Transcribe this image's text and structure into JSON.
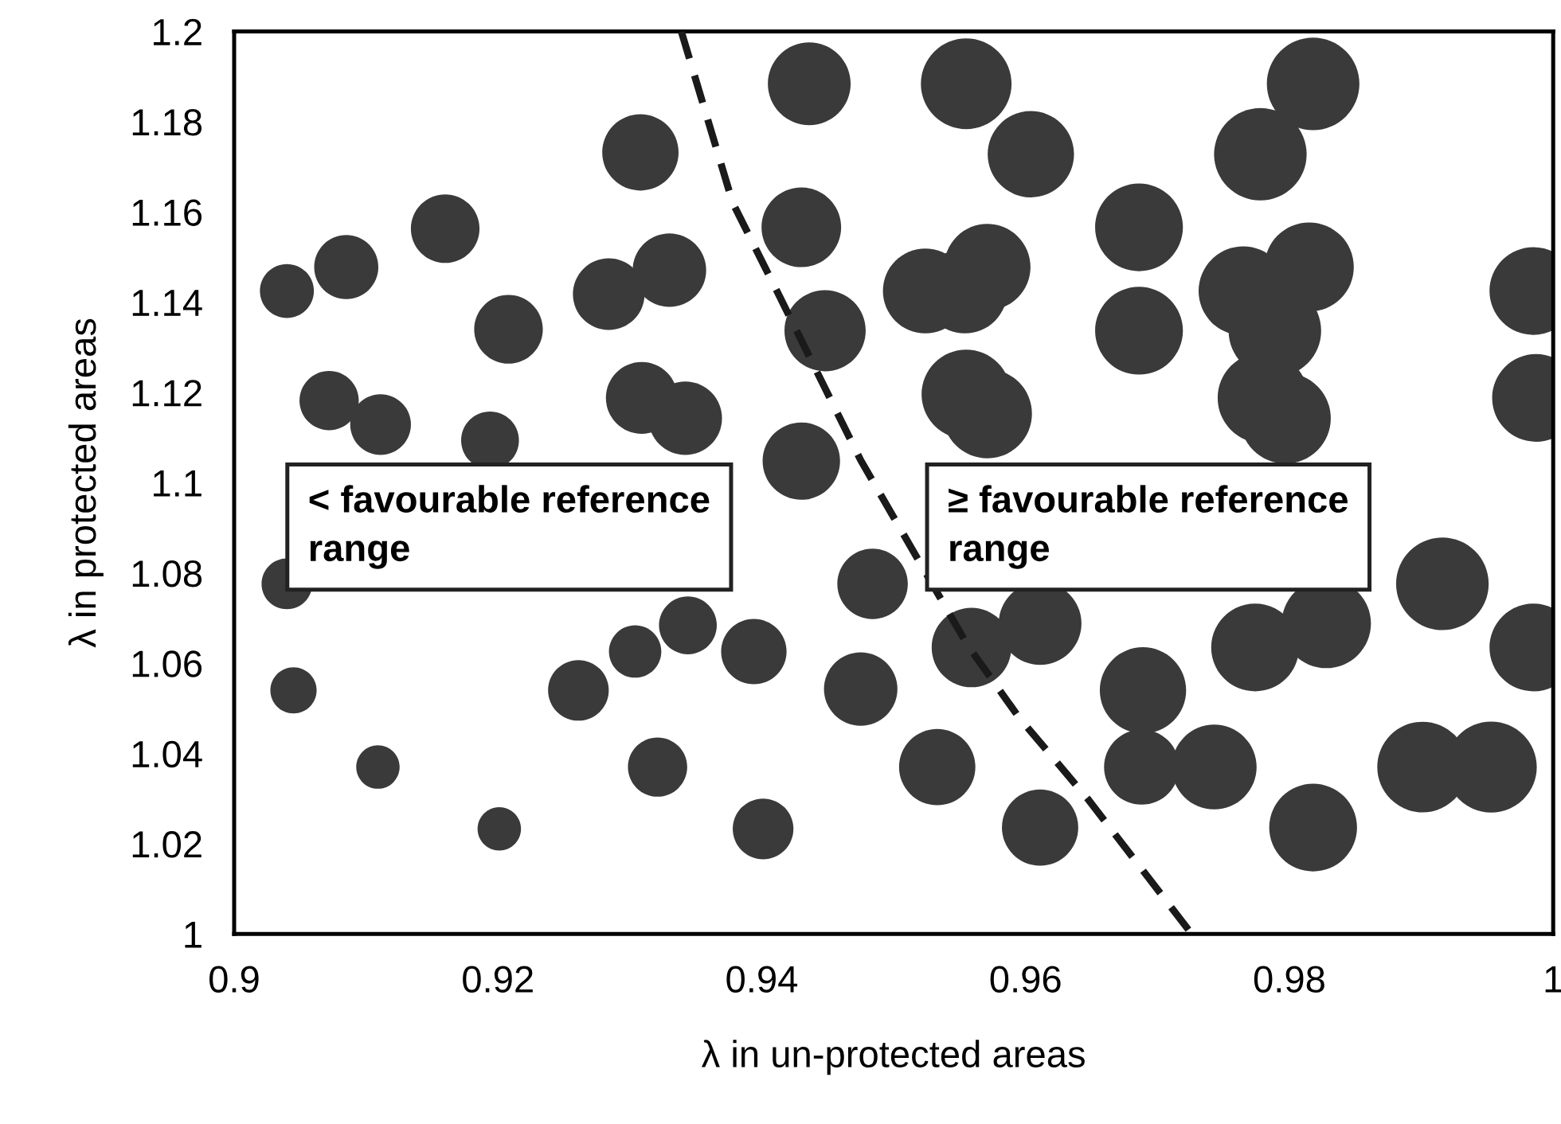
{
  "chart_data": {
    "type": "bubble",
    "xlabel": "λ in un-protected areas",
    "ylabel": "λ in protected areas",
    "xlim": [
      0.9,
      1
    ],
    "xticks": [
      0.9,
      0.92,
      0.94,
      0.96,
      0.98,
      1
    ],
    "ylim": [
      1,
      1.2
    ],
    "yticks": [
      1,
      1.02,
      1.04,
      1.06,
      1.08,
      1.1,
      1.12,
      1.14,
      1.16,
      1.18,
      1.2
    ],
    "grid": false,
    "legend": false,
    "marker": "circle",
    "annotations": [
      "< favourable reference\nrange",
      "≥ favourable reference\nrange"
    ],
    "series": [
      {
        "color": "#3a3a3a",
        "x": [
          0.904,
          0.9085,
          0.9072,
          0.9111,
          0.916,
          0.9208,
          0.9194,
          0.9284,
          0.933,
          0.9308,
          0.9309,
          0.9342,
          0.943,
          0.9436,
          0.9448,
          0.943,
          0.9555,
          0.9604,
          0.9686,
          0.9818,
          0.9554,
          0.9778,
          0.9524,
          0.9571,
          0.9765,
          0.9815,
          0.9686,
          0.9789,
          0.9985,
          0.9555,
          0.9571,
          0.978,
          0.9797,
          0.9987,
          0.904,
          0.9261,
          0.9304,
          0.9344,
          0.9394,
          0.9484,
          0.9045,
          0.9261,
          0.9475,
          0.9109,
          0.9321,
          0.9201,
          0.9401,
          0.9559,
          0.9611,
          0.9689,
          0.9774,
          0.9828,
          0.9916,
          0.9985,
          0.9688,
          0.9901,
          0.9533,
          0.9743,
          0.9953,
          0.9611,
          0.9818
        ],
        "values": [
          1.1425,
          1.1478,
          1.1182,
          1.1129,
          1.1563,
          1.134,
          1.1094,
          1.1418,
          1.1471,
          1.1732,
          1.1188,
          1.1143,
          1.1566,
          1.1884,
          1.1337,
          1.1048,
          1.1884,
          1.1728,
          1.1566,
          1.1884,
          1.1425,
          1.1728,
          1.1425,
          1.1478,
          1.1425,
          1.1478,
          1.1337,
          1.1337,
          1.1425,
          1.1196,
          1.1153,
          1.1188,
          1.1143,
          1.1188,
          1.0776,
          null,
          1.0626,
          1.0684,
          1.0626,
          1.0776,
          1.054,
          1.054,
          1.0543,
          1.037,
          1.037,
          1.0233,
          1.0233,
          1.0635,
          1.0688,
          1.054,
          1.0635,
          1.0688,
          1.0776,
          1.0635,
          1.037,
          1.037,
          1.037,
          1.037,
          1.037,
          1.0236,
          1.0236
        ],
        "sizes": [
          0.34,
          0.48,
          0.41,
          0.43,
          0.55,
          0.55,
          0.39,
          0.6,
          0.63,
          0.68,
          0.6,
          0.63,
          0.74,
          0.8,
          0.77,
          0.7,
          0.96,
          0.87,
          0.9,
          1.0,
          0.84,
          1.0,
          0.84,
          0.87,
          0.93,
          0.93,
          0.9,
          1.0,
          0.9,
          0.93,
          0.93,
          0.96,
          0.96,
          0.9,
          0.3,
          null,
          0.32,
          0.39,
          0.5,
          0.58,
          0.25,
          0.43,
          0.63,
          0.22,
          0.41,
          0.22,
          0.43,
          0.74,
          0.8,
          0.87,
          0.9,
          0.93,
          1.0,
          0.9,
          0.66,
          0.96,
          0.68,
          0.84,
          0.97,
          0.68,
          0.9
        ]
      },
      {
        "type": "line",
        "color": "#1a1a1a",
        "line_style": "dashed",
        "marker": "none",
        "x": [
          0.9339,
          0.9378,
          0.9414,
          0.9475,
          0.9556,
          0.9595,
          0.9647,
          0.9726
        ],
        "values": [
          1.2,
          1.162,
          1.141,
          1.105,
          1.064,
          1.048,
          1.03,
          1.0
        ]
      }
    ]
  }
}
